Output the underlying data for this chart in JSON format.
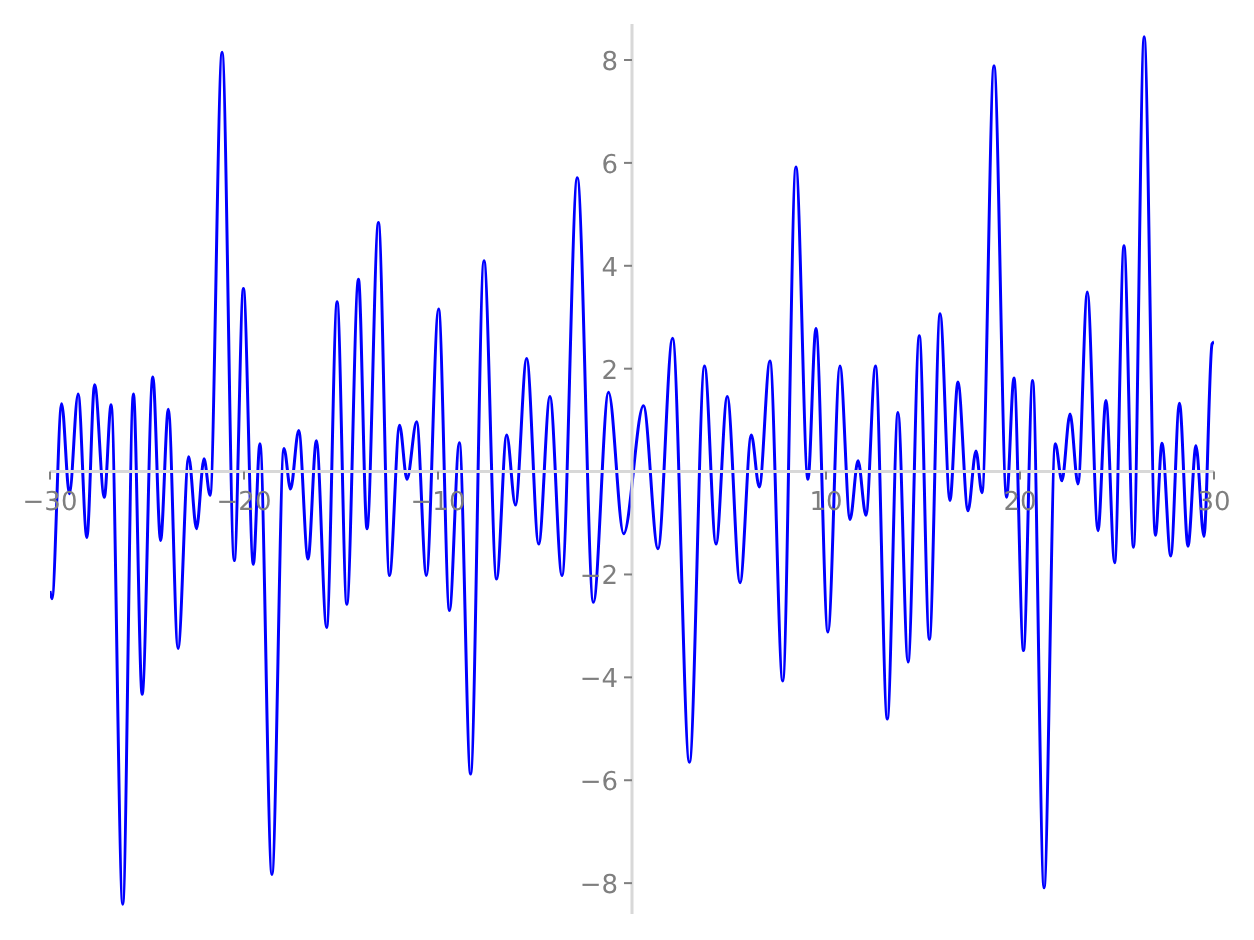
{
  "chart_data": {
    "type": "line",
    "x": [
      -30.0,
      -29.9,
      -29.4,
      -29.0,
      -28.55,
      -28.1,
      -27.7,
      -27.2,
      -26.85,
      -26.25,
      -25.7,
      -25.25,
      -24.7,
      -24.3,
      -23.9,
      -23.4,
      -22.85,
      -22.45,
      -22.06,
      -21.75,
      -21.13,
      -20.5,
      -20.03,
      -19.52,
      -19.18,
      -18.56,
      -17.94,
      -17.6,
      -17.18,
      -16.7,
      -16.27,
      -15.74,
      -15.2,
      -14.7,
      -14.1,
      -13.66,
      -13.07,
      -12.5,
      -11.98,
      -11.6,
      -11.1,
      -10.6,
      -9.97,
      -9.41,
      -8.9,
      -8.32,
      -7.63,
      -6.98,
      -6.46,
      -6.01,
      -5.43,
      -4.81,
      -4.23,
      -3.61,
      -2.82,
      -1.99,
      -1.21,
      -0.43,
      0.59,
      1.34,
      2.09,
      2.96,
      3.74,
      4.33,
      4.91,
      5.57,
      6.15,
      6.56,
      7.11,
      7.77,
      8.45,
      9.07,
      9.48,
      10.1,
      10.72,
      11.24,
      11.65,
      12.06,
      12.55,
      13.16,
      13.71,
      14.23,
      14.81,
      15.33,
      15.88,
      16.39,
      16.8,
      17.32,
      17.73,
      18.04,
      18.66,
      19.31,
      19.69,
      20.18,
      20.65,
      21.24,
      21.82,
      22.16,
      22.58,
      22.99,
      23.47,
      24.02,
      24.43,
      24.88,
      25.36,
      25.85,
      26.4,
      26.98,
      27.32,
      27.77,
      28.22,
      28.66,
      29.07,
      29.48,
      29.9,
      30.0
    ],
    "series": [
      {
        "color": "#0000ff",
        "values": [
          -2.32,
          -2.47,
          1.32,
          -0.43,
          1.51,
          -1.28,
          1.69,
          -0.5,
          1.3,
          -8.41,
          1.51,
          -4.33,
          1.84,
          -1.34,
          1.21,
          -3.44,
          0.29,
          -1.11,
          0.25,
          -0.46,
          8.15,
          -1.73,
          3.56,
          -1.8,
          0.54,
          -7.83,
          0.45,
          -0.34,
          0.8,
          -1.7,
          0.6,
          -3.03,
          3.3,
          -2.58,
          3.74,
          -1.11,
          4.84,
          -2.02,
          0.9,
          -0.15,
          0.97,
          -2.02,
          3.16,
          -2.7,
          0.56,
          -5.88,
          4.1,
          -2.09,
          0.71,
          -0.65,
          2.2,
          -1.41,
          1.46,
          -2.02,
          5.71,
          -2.54,
          1.54,
          -1.21,
          1.28,
          -1.5,
          2.59,
          -5.65,
          2.05,
          -1.41,
          1.46,
          -2.16,
          0.71,
          -0.3,
          2.15,
          -4.07,
          5.92,
          -0.15,
          2.78,
          -3.12,
          2.05,
          -0.93,
          0.21,
          -0.85,
          2.05,
          -4.81,
          1.15,
          -3.7,
          2.64,
          -3.26,
          3.07,
          -0.56,
          1.74,
          -0.76,
          0.4,
          -0.41,
          7.89,
          -0.5,
          1.82,
          -3.48,
          1.77,
          -8.09,
          0.54,
          -0.18,
          1.12,
          -0.24,
          3.49,
          -1.15,
          1.38,
          -1.77,
          4.39,
          -1.47,
          8.45,
          -1.24,
          0.55,
          -1.64,
          1.33,
          -1.45,
          0.5,
          -1.26,
          2.48,
          2.52
        ]
      }
    ],
    "xlim": [
      -30,
      30
    ],
    "ylim": [
      -8.6,
      8.7
    ],
    "xticks": [
      {
        "value": -30,
        "label": "−30"
      },
      {
        "value": -20,
        "label": "−20"
      },
      {
        "value": -10,
        "label": "−10"
      },
      10,
      20,
      30
    ],
    "yticks": [
      {
        "value": -8,
        "label": "−8"
      },
      {
        "value": -6,
        "label": "−6"
      },
      {
        "value": -4,
        "label": "−4"
      },
      {
        "value": -2,
        "label": "−2"
      },
      2,
      4,
      6,
      8
    ]
  }
}
